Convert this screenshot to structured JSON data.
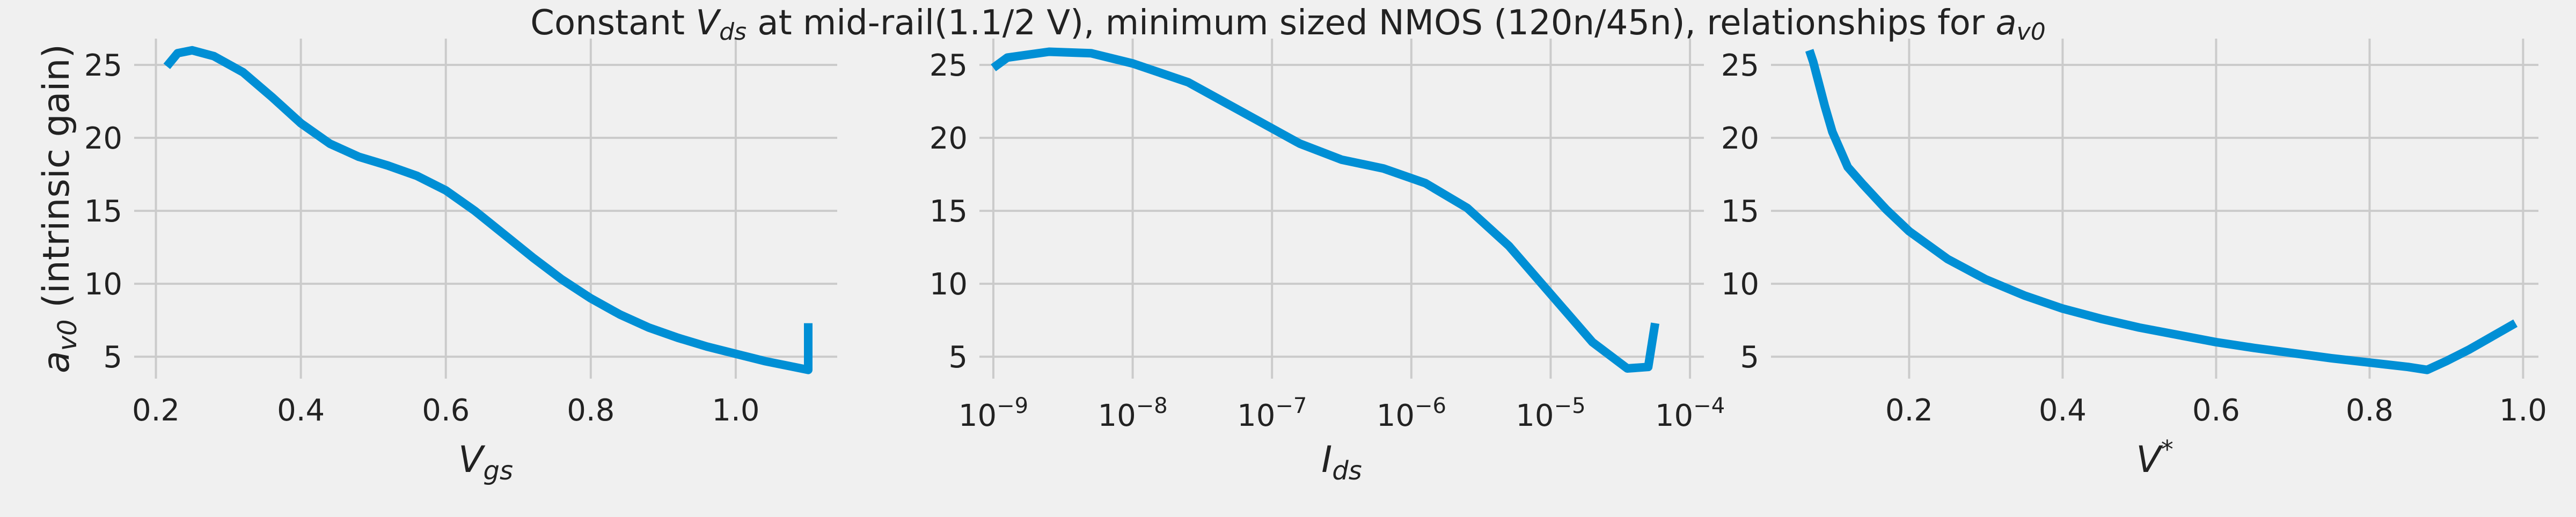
{
  "figure": {
    "title": {
      "pre": "Constant ",
      "v": "V",
      "ds": "ds",
      "mid": " at mid-rail(1.1/2 V), minimum sized NMOS (120n/45n), relationships for ",
      "a": "a",
      "v0": "v0"
    }
  },
  "colors": {
    "line": "#008fd5",
    "grid": "#cbcbcb",
    "background": "#f0f0f0",
    "text": "#222222"
  },
  "chart_data": [
    {
      "type": "line",
      "xlabel": "V_gs",
      "ylabel": "a_v0 (intrinsic gain)",
      "xscale": "linear",
      "xlim": [
        0.17,
        1.14
      ],
      "ylim": [
        3.5,
        26.8
      ],
      "xticks": [
        0.2,
        0.4,
        0.6,
        0.8,
        1.0
      ],
      "xtick_labels": [
        "0.2",
        "0.4",
        "0.6",
        "0.8",
        "1.0"
      ],
      "yticks": [
        5,
        10,
        15,
        20,
        25
      ],
      "ytick_labels": [
        "5",
        "10",
        "15",
        "20",
        "25"
      ],
      "grid": true,
      "series": [
        {
          "x": [
            0.215,
            0.23,
            0.25,
            0.28,
            0.32,
            0.36,
            0.4,
            0.44,
            0.48,
            0.52,
            0.56,
            0.6,
            0.64,
            0.68,
            0.72,
            0.76,
            0.8,
            0.84,
            0.88,
            0.92,
            0.96,
            1.0,
            1.04,
            1.08,
            1.1,
            1.1
          ],
          "y": [
            24.9,
            25.8,
            26.0,
            25.6,
            24.5,
            22.8,
            21.0,
            19.6,
            18.7,
            18.1,
            17.4,
            16.4,
            15.0,
            13.4,
            11.8,
            10.3,
            9.0,
            7.9,
            7.0,
            6.3,
            5.7,
            5.2,
            4.7,
            4.3,
            4.1,
            7.3
          ]
        }
      ]
    },
    {
      "type": "line",
      "xlabel": "I_ds",
      "ylabel": "",
      "xscale": "log",
      "xlim_log10": [
        -9.1,
        -3.9
      ],
      "ylim": [
        3.5,
        26.8
      ],
      "xticks_log10": [
        -9,
        -8,
        -7,
        -6,
        -5,
        -4
      ],
      "xtick_base": "10",
      "xtick_exponents": [
        "−9",
        "−8",
        "−7",
        "−6",
        "−5",
        "−4"
      ],
      "yticks": [
        5,
        10,
        15,
        20,
        25
      ],
      "ytick_labels": [
        "5",
        "10",
        "15",
        "20",
        "25"
      ],
      "grid": true,
      "series": [
        {
          "x_log10": [
            -9.0,
            -8.9,
            -8.6,
            -8.3,
            -8.0,
            -7.6,
            -7.2,
            -6.8,
            -6.5,
            -6.2,
            -5.9,
            -5.6,
            -5.3,
            -5.0,
            -4.7,
            -4.45,
            -4.3,
            -4.25
          ],
          "y": [
            24.8,
            25.5,
            25.9,
            25.8,
            25.1,
            23.8,
            21.7,
            19.6,
            18.5,
            17.9,
            16.9,
            15.2,
            12.6,
            9.3,
            6.0,
            4.2,
            4.3,
            7.3
          ]
        }
      ]
    },
    {
      "type": "line",
      "xlabel": "V*",
      "ylabel": "",
      "xscale": "linear",
      "xlim": [
        0.02,
        1.02
      ],
      "ylim": [
        3.5,
        26.8
      ],
      "xticks": [
        0.2,
        0.4,
        0.6,
        0.8,
        1.0
      ],
      "xtick_labels": [
        "0.2",
        "0.4",
        "0.6",
        "0.8",
        "1.0"
      ],
      "yticks": [
        5,
        10,
        15,
        20,
        25
      ],
      "ytick_labels": [
        "5",
        "10",
        "15",
        "20",
        "25"
      ],
      "grid": true,
      "series": [
        {
          "x": [
            0.07,
            0.075,
            0.08,
            0.09,
            0.1,
            0.12,
            0.14,
            0.17,
            0.2,
            0.25,
            0.3,
            0.35,
            0.4,
            0.45,
            0.5,
            0.55,
            0.6,
            0.65,
            0.7,
            0.75,
            0.8,
            0.85,
            0.875,
            0.9,
            0.93,
            0.96,
            0.99
          ],
          "y": [
            26.0,
            25.2,
            24.2,
            22.2,
            20.4,
            18.0,
            16.8,
            15.1,
            13.6,
            11.7,
            10.3,
            9.2,
            8.3,
            7.6,
            7.0,
            6.5,
            6.0,
            5.6,
            5.25,
            4.9,
            4.6,
            4.3,
            4.1,
            4.7,
            5.5,
            6.4,
            7.3
          ]
        }
      ]
    }
  ]
}
